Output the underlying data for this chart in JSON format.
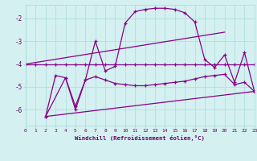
{
  "xlabel": "Windchill (Refroidissement éolien,°C)",
  "background_color": "#d4f0f0",
  "line_color": "#880088",
  "grid_color": "#aadddd",
  "series1_x": [
    0,
    1,
    2,
    3,
    4,
    5,
    6,
    7,
    8,
    9,
    10,
    11,
    12,
    13,
    14,
    15,
    16,
    17,
    18,
    19,
    20,
    21,
    22,
    23
  ],
  "series1_y": [
    -4.0,
    -4.0,
    -4.0,
    -4.0,
    -4.0,
    -4.0,
    -4.0,
    -4.0,
    -4.0,
    -4.0,
    -4.0,
    -4.0,
    -4.0,
    -4.0,
    -4.0,
    -4.0,
    -4.0,
    -4.0,
    -4.0,
    -4.0,
    -4.0,
    -4.0,
    -4.0,
    -4.0
  ],
  "series2_x": [
    2,
    3,
    4,
    5,
    6,
    7,
    8,
    9,
    10,
    11,
    12,
    13,
    14,
    15,
    16,
    17,
    18,
    19,
    20,
    21,
    22,
    23
  ],
  "series2_y": [
    -6.3,
    -4.5,
    -4.6,
    -6.0,
    -4.7,
    -3.0,
    -4.3,
    -4.1,
    -2.2,
    -1.7,
    -1.6,
    -1.55,
    -1.55,
    -1.6,
    -1.75,
    -2.15,
    -3.8,
    -4.15,
    -3.6,
    -4.8,
    -3.5,
    -5.2
  ],
  "series3_x": [
    2,
    4,
    5,
    6,
    7,
    8,
    9,
    10,
    11,
    12,
    13,
    14,
    15,
    16,
    17,
    18,
    19,
    20,
    21,
    22,
    23
  ],
  "series3_y": [
    -6.3,
    -4.6,
    -5.85,
    -4.7,
    -4.55,
    -4.7,
    -4.85,
    -4.9,
    -4.95,
    -4.95,
    -4.9,
    -4.85,
    -4.8,
    -4.75,
    -4.65,
    -4.55,
    -4.5,
    -4.45,
    -4.9,
    -4.8,
    -5.2
  ],
  "series4_x": [
    2,
    23
  ],
  "series4_y": [
    -6.3,
    -5.2
  ],
  "series5_x": [
    0,
    20
  ],
  "series5_y": [
    -4.0,
    -2.6
  ],
  "xlim": [
    0,
    23
  ],
  "ylim": [
    -6.7,
    -1.4
  ],
  "yticks": [
    -6,
    -5,
    -4,
    -3,
    -2
  ],
  "xticks": [
    0,
    1,
    2,
    3,
    4,
    5,
    6,
    7,
    8,
    9,
    10,
    11,
    12,
    13,
    14,
    15,
    16,
    17,
    18,
    19,
    20,
    21,
    22,
    23
  ]
}
